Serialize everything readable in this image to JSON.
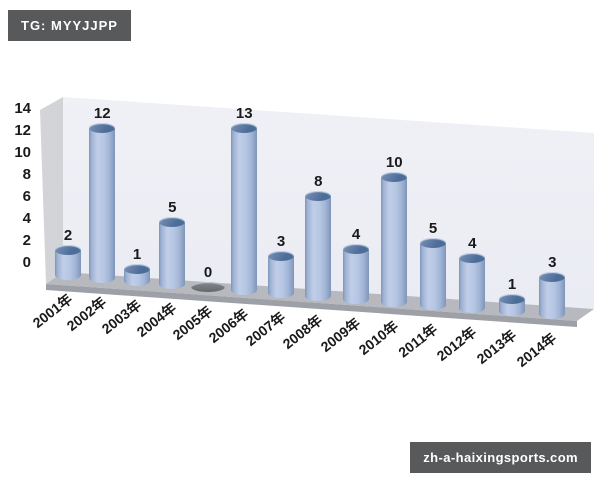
{
  "badges": {
    "top": "TG: MYYJJPP",
    "bottom": "zh-a-haixingsports.com"
  },
  "chart_data": {
    "type": "bar",
    "subtype": "3d-cylinder",
    "title": "",
    "xlabel": "",
    "ylabel": "",
    "categories": [
      "2001年",
      "2002年",
      "2003年",
      "2004年",
      "2005年",
      "2006年",
      "2007年",
      "2008年",
      "2009年",
      "2010年",
      "2011年",
      "2012年",
      "2013年",
      "2014年"
    ],
    "values": [
      2,
      12,
      1,
      5,
      0,
      13,
      3,
      8,
      4,
      10,
      5,
      4,
      1,
      3
    ],
    "ylim": [
      0,
      14
    ],
    "yticks": [
      0,
      2,
      4,
      6,
      8,
      10,
      12,
      14
    ],
    "grid": false,
    "legend_position": "none",
    "data_labels_shown": true
  },
  "colors": {
    "badge_bg": "#58595b",
    "badge_text": "#ffffff",
    "label_text": "#1a1a1a",
    "cylinder_light": "#c0cde8",
    "cylinder_dark": "#7e95b8",
    "cylinder_top": "#4d6d99",
    "zero_marker": "#64676c",
    "back_wall": "#e9ebf2",
    "left_wall": "#b5b7bc",
    "floor": "#b7b9bf",
    "floor_edge": "#9da0a6",
    "background": "#ffffff"
  }
}
